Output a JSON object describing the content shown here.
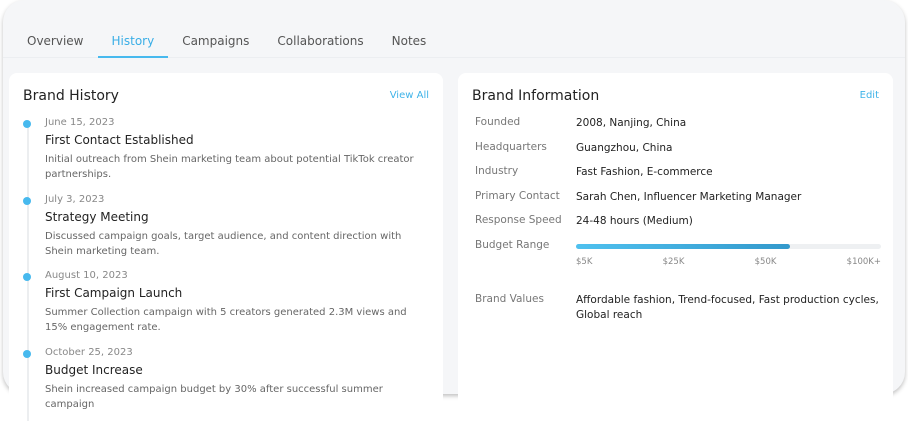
{
  "tabs": [
    {
      "label": "Overview"
    },
    {
      "label": "History",
      "active": true
    },
    {
      "label": "Campaigns"
    },
    {
      "label": "Collaborations"
    },
    {
      "label": "Notes"
    }
  ],
  "history": {
    "title": "Brand History",
    "link": "View All",
    "events": [
      {
        "date": "June 15, 2023",
        "title": "First Contact Established",
        "desc": "Initial outreach from Shein marketing team about potential TikTok creator partnerships."
      },
      {
        "date": "July 3, 2023",
        "title": "Strategy Meeting",
        "desc": "Discussed campaign goals, target audience, and content direction with Shein marketing team."
      },
      {
        "date": "August 10, 2023",
        "title": "First Campaign Launch",
        "desc": "Summer Collection campaign with 5 creators generated 2.3M views and 15% engagement rate."
      },
      {
        "date": "October 25, 2023",
        "title": "Budget Increase",
        "desc": "Shein increased campaign budget by 30% after successful summer campaign"
      }
    ]
  },
  "info": {
    "title": "Brand Information",
    "link": "Edit",
    "rows": [
      {
        "label": "Founded",
        "value": "2008, Nanjing, China"
      },
      {
        "label": "Headquarters",
        "value": "Guangzhou, China"
      },
      {
        "label": "Industry",
        "value": "Fast Fashion, E-commerce"
      },
      {
        "label": "Primary Contact",
        "value": "Sarah Chen, Influencer Marketing Manager"
      },
      {
        "label": "Response Speed",
        "value": "24-48 hours (Medium)"
      }
    ],
    "budget": {
      "label": "Budget Range",
      "fill_percent": 70,
      "ticks": [
        "$5K",
        "$25K",
        "$50K",
        "$100K+"
      ]
    },
    "values": {
      "label": "Brand Values",
      "value": "Affordable fashion, Trend-focused, Fast production cycles, Global reach"
    }
  },
  "colors": {
    "accent": "#47b9ee"
  }
}
